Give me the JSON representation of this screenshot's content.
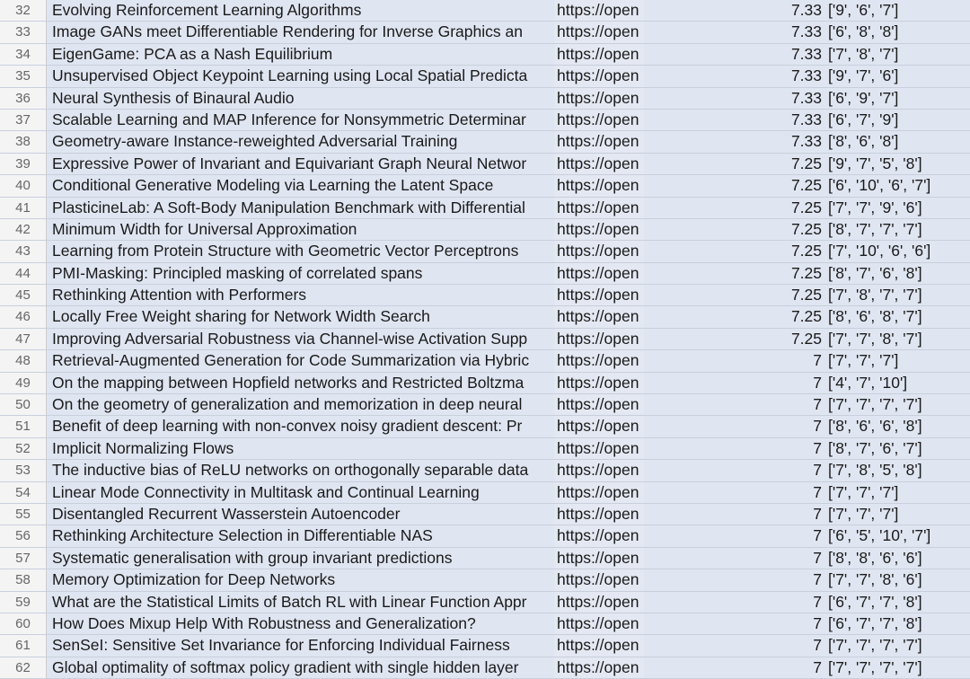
{
  "rows": [
    {
      "num": "32",
      "title": "Evolving Reinforcement Learning Algorithms",
      "url": "https://open",
      "score": "7.33",
      "ratings": "['9', '6', '7']"
    },
    {
      "num": "33",
      "title": "Image GANs meet Differentiable Rendering for Inverse Graphics an",
      "url": "https://open",
      "score": "7.33",
      "ratings": "['6', '8', '8']"
    },
    {
      "num": "34",
      "title": "EigenGame: PCA as a Nash Equilibrium",
      "url": "https://open",
      "score": "7.33",
      "ratings": "['7', '8', '7']"
    },
    {
      "num": "35",
      "title": "Unsupervised Object Keypoint Learning using Local Spatial Predicta",
      "url": "https://open",
      "score": "7.33",
      "ratings": "['9', '7', '6']"
    },
    {
      "num": "36",
      "title": "Neural Synthesis of Binaural Audio",
      "url": "https://open",
      "score": "7.33",
      "ratings": "['6', '9', '7']"
    },
    {
      "num": "37",
      "title": "Scalable Learning and MAP Inference for Nonsymmetric Determinar",
      "url": "https://open",
      "score": "7.33",
      "ratings": "['6', '7', '9']"
    },
    {
      "num": "38",
      "title": "Geometry-aware Instance-reweighted Adversarial Training",
      "url": "https://open",
      "score": "7.33",
      "ratings": "['8', '6', '8']"
    },
    {
      "num": "39",
      "title": "Expressive Power of Invariant and Equivariant Graph Neural Networ",
      "url": "https://open",
      "score": "7.25",
      "ratings": "['9', '7', '5', '8']"
    },
    {
      "num": "40",
      "title": "Conditional Generative Modeling via Learning the Latent Space",
      "url": "https://open",
      "score": "7.25",
      "ratings": "['6', '10', '6', '7']"
    },
    {
      "num": "41",
      "title": "PlasticineLab: A Soft-Body Manipulation Benchmark with Differential",
      "url": "https://open",
      "score": "7.25",
      "ratings": "['7', '7', '9', '6']"
    },
    {
      "num": "42",
      "title": "Minimum Width for Universal Approximation",
      "url": "https://open",
      "score": "7.25",
      "ratings": "['8', '7', '7', '7']"
    },
    {
      "num": "43",
      "title": "Learning from Protein Structure with Geometric Vector Perceptrons",
      "url": "https://open",
      "score": "7.25",
      "ratings": "['7', '10', '6', '6']"
    },
    {
      "num": "44",
      "title": "PMI-Masking: Principled masking of correlated spans",
      "url": "https://open",
      "score": "7.25",
      "ratings": "['8', '7', '6', '8']"
    },
    {
      "num": "45",
      "title": "Rethinking Attention with Performers",
      "url": "https://open",
      "score": "7.25",
      "ratings": "['7', '8', '7', '7']"
    },
    {
      "num": "46",
      "title": "Locally Free Weight sharing for Network Width Search",
      "url": "https://open",
      "score": "7.25",
      "ratings": "['8', '6', '8', '7']"
    },
    {
      "num": "47",
      "title": "Improving Adversarial Robustness via Channel-wise Activation Supp",
      "url": "https://open",
      "score": "7.25",
      "ratings": "['7', '7', '8', '7']"
    },
    {
      "num": "48",
      "title": "Retrieval-Augmented Generation for Code Summarization via Hybric",
      "url": "https://open",
      "score": "7",
      "ratings": "['7', '7', '7']"
    },
    {
      "num": "49",
      "title": "On the mapping between Hopfield networks and Restricted Boltzma",
      "url": "https://open",
      "score": "7",
      "ratings": "['4', '7', '10']"
    },
    {
      "num": "50",
      "title": "On the geometry of generalization and memorization in deep neural",
      "url": "https://open",
      "score": "7",
      "ratings": "['7', '7', '7', '7']"
    },
    {
      "num": "51",
      "title": "Benefit of deep learning with non-convex noisy gradient descent: Pr",
      "url": "https://open",
      "score": "7",
      "ratings": "['8', '6', '6', '8']"
    },
    {
      "num": "52",
      "title": "Implicit Normalizing Flows",
      "url": "https://open",
      "score": "7",
      "ratings": "['8', '7', '6', '7']"
    },
    {
      "num": "53",
      "title": "The inductive bias of ReLU networks on orthogonally separable data",
      "url": "https://open",
      "score": "7",
      "ratings": "['7', '8', '5', '8']"
    },
    {
      "num": "54",
      "title": "Linear Mode Connectivity in Multitask and Continual Learning",
      "url": "https://open",
      "score": "7",
      "ratings": "['7', '7', '7']"
    },
    {
      "num": "55",
      "title": "Disentangled Recurrent Wasserstein Autoencoder",
      "url": "https://open",
      "score": "7",
      "ratings": "['7', '7', '7']"
    },
    {
      "num": "56",
      "title": "Rethinking Architecture Selection in Differentiable NAS",
      "url": "https://open",
      "score": "7",
      "ratings": "['6', '5', '10', '7']"
    },
    {
      "num": "57",
      "title": "Systematic generalisation with group invariant predictions",
      "url": "https://open",
      "score": "7",
      "ratings": "['8', '8', '6', '6']"
    },
    {
      "num": "58",
      "title": "Memory Optimization for Deep Networks",
      "url": "https://open",
      "score": "7",
      "ratings": "['7', '7', '8', '6']"
    },
    {
      "num": "59",
      "title": "What are the Statistical Limits of Batch RL with Linear Function Appr",
      "url": "https://open",
      "score": "7",
      "ratings": "['6', '7', '7', '8']"
    },
    {
      "num": "60",
      "title": "How Does Mixup Help With Robustness and Generalization?",
      "url": "https://open",
      "score": "7",
      "ratings": "['6', '7', '7', '8']"
    },
    {
      "num": "61",
      "title": "SenSeI: Sensitive Set Invariance for Enforcing Individual Fairness",
      "url": "https://open",
      "score": "7",
      "ratings": "['7', '7', '7', '7']"
    },
    {
      "num": "62",
      "title": "Global optimality of softmax policy gradient with single hidden layer",
      "url": "https://open",
      "score": "7",
      "ratings": "['7', '7', '7', '7']"
    }
  ]
}
